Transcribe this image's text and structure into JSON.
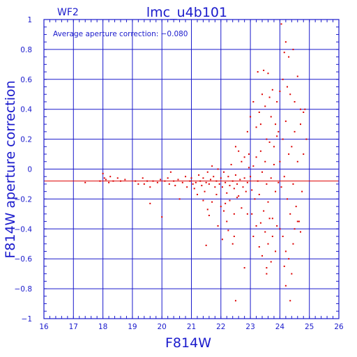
{
  "chip_label": "WF2",
  "annotation": "Average aperture correction:  −0.080",
  "colors": {
    "axes": "#1a1acc",
    "points": "#dd0000",
    "mean_line": "#dd0000",
    "background": "#ffffff"
  },
  "chart_data": {
    "type": "scatter",
    "title": "lmc_u4b101",
    "xlabel": "F814W",
    "ylabel": "F814W aperture correction",
    "xlim": [
      16,
      26
    ],
    "ylim": [
      -1,
      1
    ],
    "x_ticks": [
      16,
      17,
      18,
      19,
      20,
      21,
      22,
      23,
      24,
      25,
      26
    ],
    "y_ticks": [
      -1,
      -0.8,
      -0.6,
      -0.4,
      -0.2,
      0,
      0.2,
      0.4,
      0.6,
      0.8,
      1
    ],
    "y_tick_labels": [
      "−1",
      "−0.8",
      "−0.6",
      "−0.4",
      "−0.2",
      "0",
      "0.2",
      "0.4",
      "0.6",
      "0.8",
      "1"
    ],
    "grid": true,
    "mean_value": -0.08,
    "series": [
      {
        "points": [
          [
            17.4,
            -0.09
          ],
          [
            17.9,
            -0.08
          ],
          [
            18.0,
            -0.03
          ],
          [
            18.05,
            -0.06
          ],
          [
            18.1,
            -0.07
          ],
          [
            18.2,
            -0.09
          ],
          [
            18.25,
            -0.05
          ],
          [
            18.35,
            -0.08
          ],
          [
            18.5,
            -0.06
          ],
          [
            18.6,
            -0.08
          ],
          [
            18.75,
            -0.07
          ],
          [
            19.1,
            -0.08
          ],
          [
            19.2,
            -0.1
          ],
          [
            19.35,
            -0.06
          ],
          [
            19.4,
            -0.1
          ],
          [
            19.5,
            -0.08
          ],
          [
            19.6,
            -0.12
          ],
          [
            19.7,
            -0.08
          ],
          [
            19.6,
            -0.23
          ],
          [
            19.85,
            -0.09
          ],
          [
            19.95,
            -0.07
          ],
          [
            20.0,
            -0.32
          ],
          [
            20.1,
            -0.08
          ],
          [
            20.2,
            -0.06
          ],
          [
            20.25,
            -0.1
          ],
          [
            20.3,
            -0.02
          ],
          [
            20.4,
            -0.08
          ],
          [
            20.45,
            -0.11
          ],
          [
            20.55,
            -0.07
          ],
          [
            20.6,
            -0.2
          ],
          [
            20.7,
            -0.09
          ],
          [
            20.8,
            -0.05
          ],
          [
            20.85,
            -0.12
          ],
          [
            20.95,
            -0.08
          ],
          [
            21.0,
            -0.06
          ],
          [
            21.05,
            -0.1
          ],
          [
            21.1,
            -0.13
          ],
          [
            21.15,
            -0.09
          ],
          [
            21.2,
            -0.17
          ],
          [
            21.25,
            -0.04
          ],
          [
            21.3,
            -0.08
          ],
          [
            21.35,
            -0.11
          ],
          [
            21.4,
            -0.06
          ],
          [
            21.45,
            -0.15
          ],
          [
            21.5,
            -0.09
          ],
          [
            21.55,
            -0.02
          ],
          [
            21.6,
            -0.1
          ],
          [
            21.65,
            -0.07
          ],
          [
            21.7,
            -0.22
          ],
          [
            21.75,
            -0.05
          ],
          [
            21.8,
            -0.12
          ],
          [
            21.85,
            -0.08
          ],
          [
            21.9,
            0.0
          ],
          [
            21.95,
            -0.1
          ],
          [
            21.5,
            -0.51
          ],
          [
            21.6,
            -0.31
          ],
          [
            21.7,
            0.02
          ],
          [
            21.85,
            -0.17
          ],
          [
            21.9,
            -0.38
          ],
          [
            21.55,
            -0.27
          ],
          [
            21.4,
            -0.21
          ],
          [
            22.0,
            -0.06
          ],
          [
            22.05,
            -0.12
          ],
          [
            22.1,
            -0.02
          ],
          [
            22.15,
            -0.09
          ],
          [
            22.2,
            -0.16
          ],
          [
            22.25,
            -0.05
          ],
          [
            22.3,
            -0.11
          ],
          [
            22.35,
            0.03
          ],
          [
            22.4,
            -0.08
          ],
          [
            22.45,
            -0.13
          ],
          [
            22.5,
            -0.04
          ],
          [
            22.55,
            -0.1
          ],
          [
            22.6,
            -0.18
          ],
          [
            22.65,
            -0.07
          ],
          [
            22.7,
            0.05
          ],
          [
            22.75,
            -0.12
          ],
          [
            22.8,
            -0.06
          ],
          [
            22.85,
            -0.15
          ],
          [
            22.9,
            -0.09
          ],
          [
            22.95,
            0.01
          ],
          [
            22.0,
            -0.25
          ],
          [
            22.1,
            -0.28
          ],
          [
            22.2,
            -0.35
          ],
          [
            22.25,
            -0.41
          ],
          [
            22.15,
            -0.23
          ],
          [
            22.3,
            -0.21
          ],
          [
            22.4,
            -0.5
          ],
          [
            22.45,
            -0.3
          ],
          [
            22.5,
            0.15
          ],
          [
            22.6,
            0.12
          ],
          [
            22.7,
            -0.26
          ],
          [
            22.8,
            0.08
          ],
          [
            22.9,
            -0.3
          ],
          [
            22.45,
            -0.45
          ],
          [
            22.55,
            -0.19
          ],
          [
            22.05,
            -0.47
          ],
          [
            22.5,
            -0.88
          ],
          [
            22.8,
            -0.66
          ],
          [
            22.9,
            0.25
          ],
          [
            22.95,
            0.1
          ],
          [
            23.0,
            -0.05
          ],
          [
            23.05,
            -0.14
          ],
          [
            23.1,
            0.02
          ],
          [
            23.15,
            -0.2
          ],
          [
            23.2,
            0.08
          ],
          [
            23.25,
            -0.08
          ],
          [
            23.3,
            -0.17
          ],
          [
            23.35,
            0.12
          ],
          [
            23.4,
            -0.02
          ],
          [
            23.45,
            -0.28
          ],
          [
            23.5,
            0.05
          ],
          [
            23.55,
            -0.1
          ],
          [
            23.6,
            -0.22
          ],
          [
            23.65,
            0.18
          ],
          [
            23.7,
            -0.06
          ],
          [
            23.75,
            -0.33
          ],
          [
            23.8,
            0.03
          ],
          [
            23.85,
            -0.15
          ],
          [
            23.9,
            0.22
          ],
          [
            23.95,
            -0.09
          ],
          [
            23.0,
            0.35
          ],
          [
            23.1,
            0.45
          ],
          [
            23.2,
            0.28
          ],
          [
            23.25,
            0.65
          ],
          [
            23.3,
            0.38
          ],
          [
            23.35,
            0.3
          ],
          [
            23.4,
            0.5
          ],
          [
            23.45,
            0.66
          ],
          [
            23.5,
            0.42
          ],
          [
            23.55,
            0.2
          ],
          [
            23.6,
            0.64
          ],
          [
            23.65,
            0.48
          ],
          [
            23.7,
            0.35
          ],
          [
            23.75,
            0.53
          ],
          [
            23.8,
            0.15
          ],
          [
            23.85,
            0.3
          ],
          [
            23.9,
            0.45
          ],
          [
            23.95,
            0.25
          ],
          [
            23.05,
            -0.3
          ],
          [
            23.1,
            -0.45
          ],
          [
            23.2,
            -0.38
          ],
          [
            23.3,
            -0.52
          ],
          [
            23.35,
            -0.36
          ],
          [
            23.4,
            -0.58
          ],
          [
            23.5,
            -0.42
          ],
          [
            23.55,
            -0.7
          ],
          [
            23.6,
            -0.5
          ],
          [
            23.65,
            -0.33
          ],
          [
            23.7,
            -0.62
          ],
          [
            23.75,
            -0.45
          ],
          [
            23.85,
            -0.55
          ],
          [
            23.9,
            -0.38
          ],
          [
            23.55,
            -0.66
          ],
          [
            24.0,
            0.05
          ],
          [
            24.05,
            -0.12
          ],
          [
            24.1,
            0.2
          ],
          [
            24.15,
            -0.05
          ],
          [
            24.2,
            0.32
          ],
          [
            24.25,
            -0.2
          ],
          [
            24.3,
            0.1
          ],
          [
            24.35,
            -0.3
          ],
          [
            24.4,
            0.15
          ],
          [
            24.45,
            -0.1
          ],
          [
            24.5,
            0.25
          ],
          [
            24.55,
            -0.25
          ],
          [
            24.6,
            0.05
          ],
          [
            24.65,
            -0.35
          ],
          [
            24.7,
            0.3
          ],
          [
            24.75,
            -0.15
          ],
          [
            24.8,
            0.1
          ],
          [
            24.85,
            0.4
          ],
          [
            24.9,
            0.2
          ],
          [
            24.0,
            0.52
          ],
          [
            24.05,
            0.97
          ],
          [
            24.1,
            0.6
          ],
          [
            24.15,
            0.78
          ],
          [
            24.2,
            0.85
          ],
          [
            24.25,
            0.55
          ],
          [
            24.3,
            0.75
          ],
          [
            24.35,
            0.5
          ],
          [
            24.45,
            0.8
          ],
          [
            24.5,
            0.45
          ],
          [
            24.6,
            0.62
          ],
          [
            24.7,
            0.4
          ],
          [
            24.8,
            0.38
          ],
          [
            24.0,
            -0.4
          ],
          [
            24.1,
            -0.45
          ],
          [
            24.2,
            -0.55
          ],
          [
            24.3,
            -0.6
          ],
          [
            24.4,
            -0.7
          ],
          [
            24.35,
            -0.88
          ],
          [
            24.45,
            -0.5
          ],
          [
            24.5,
            -0.4
          ],
          [
            24.6,
            -0.35
          ],
          [
            24.7,
            -0.42
          ],
          [
            24.2,
            -0.78
          ],
          [
            24.15,
            -0.65
          ]
        ]
      }
    ]
  }
}
